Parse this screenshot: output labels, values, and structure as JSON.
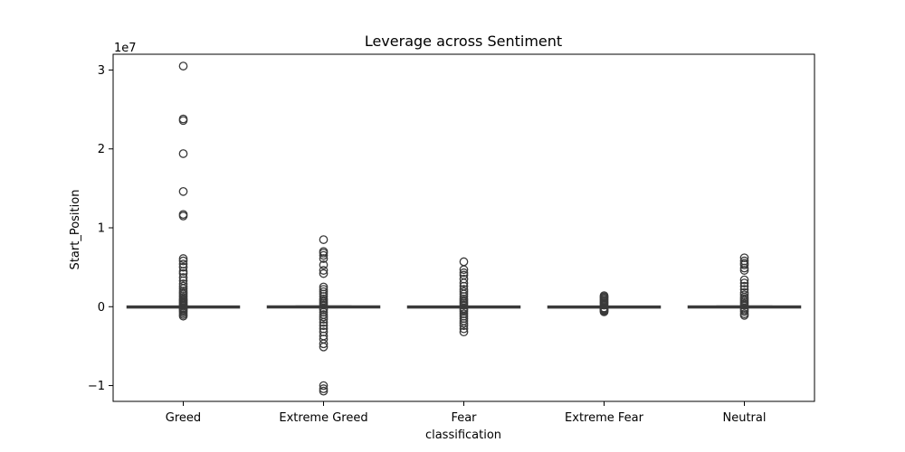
{
  "chart_data": {
    "type": "box",
    "title": "Leverage across Sentiment",
    "xlabel": "classification",
    "ylabel": "Start_Position",
    "y_offset_label": "1e7",
    "ylim": [
      -12000000,
      32000000
    ],
    "y_ticks": [
      -10000000,
      0,
      10000000,
      20000000,
      30000000
    ],
    "y_tick_labels": [
      "−1",
      "0",
      "1",
      "2",
      "3"
    ],
    "grid": false,
    "legend": "none",
    "box_color": "#3a3a3a",
    "categories": [
      "Greed",
      "Extreme Greed",
      "Fear",
      "Extreme Fear",
      "Neutral"
    ],
    "boxes": [
      {
        "category": "Greed",
        "median": 0,
        "q1": -20000,
        "q3": 20000,
        "whisker_low": -60000,
        "whisker_high": 60000,
        "outliers": [
          30500000,
          23800000,
          23600000,
          19400000,
          14600000,
          11700000,
          11500000,
          6100000,
          5800000,
          5400000,
          5000000,
          4500000,
          4200000,
          3700000,
          3300000,
          2900000,
          2600000,
          2300000,
          2000000,
          1800000,
          1600000,
          1400000,
          1200000,
          1000000,
          850000,
          700000,
          550000,
          400000,
          250000,
          150000,
          -150000,
          -300000,
          -450000,
          -600000,
          -800000,
          -1000000,
          -1200000
        ]
      },
      {
        "category": "Extreme Greed",
        "median": 0,
        "q1": -20000,
        "q3": 30000,
        "whisker_low": -60000,
        "whisker_high": 80000,
        "outliers": [
          8500000,
          7000000,
          6800000,
          6500000,
          6100000,
          5300000,
          4600000,
          4200000,
          2500000,
          2200000,
          1900000,
          1600000,
          1300000,
          1000000,
          800000,
          600000,
          400000,
          200000,
          -200000,
          -400000,
          -700000,
          -1000000,
          -1300000,
          -1600000,
          -2000000,
          -2400000,
          -2800000,
          -3200000,
          -3700000,
          -4100000,
          -4700000,
          -5100000,
          -10000000,
          -10400000,
          -10700000
        ]
      },
      {
        "category": "Fear",
        "median": 0,
        "q1": -20000,
        "q3": 20000,
        "whisker_low": -60000,
        "whisker_high": 60000,
        "outliers": [
          5700000,
          4700000,
          4300000,
          4000000,
          3500000,
          3000000,
          2600000,
          2200000,
          1900000,
          1600000,
          1300000,
          1000000,
          800000,
          600000,
          400000,
          200000,
          -200000,
          -400000,
          -600000,
          -900000,
          -1200000,
          -1500000,
          -1800000,
          -2100000,
          -2400000,
          -2800000,
          -3200000
        ]
      },
      {
        "category": "Extreme Fear",
        "median": 0,
        "q1": -15000,
        "q3": 15000,
        "whisker_low": -40000,
        "whisker_high": 40000,
        "outliers": [
          1400000,
          1250000,
          1100000,
          950000,
          800000,
          650000,
          500000,
          350000,
          200000,
          -150000,
          -250000,
          -350000,
          -450000,
          -550000,
          -650000
        ]
      },
      {
        "category": "Neutral",
        "median": 0,
        "q1": -15000,
        "q3": 25000,
        "whisker_low": -50000,
        "whisker_high": 70000,
        "outliers": [
          6200000,
          5800000,
          5500000,
          5300000,
          4900000,
          4600000,
          3400000,
          3000000,
          2600000,
          2200000,
          1800000,
          1500000,
          1200000,
          1000000,
          800000,
          600000,
          400000,
          200000,
          -200000,
          -400000,
          -600000,
          -900000,
          -1100000
        ]
      }
    ]
  }
}
